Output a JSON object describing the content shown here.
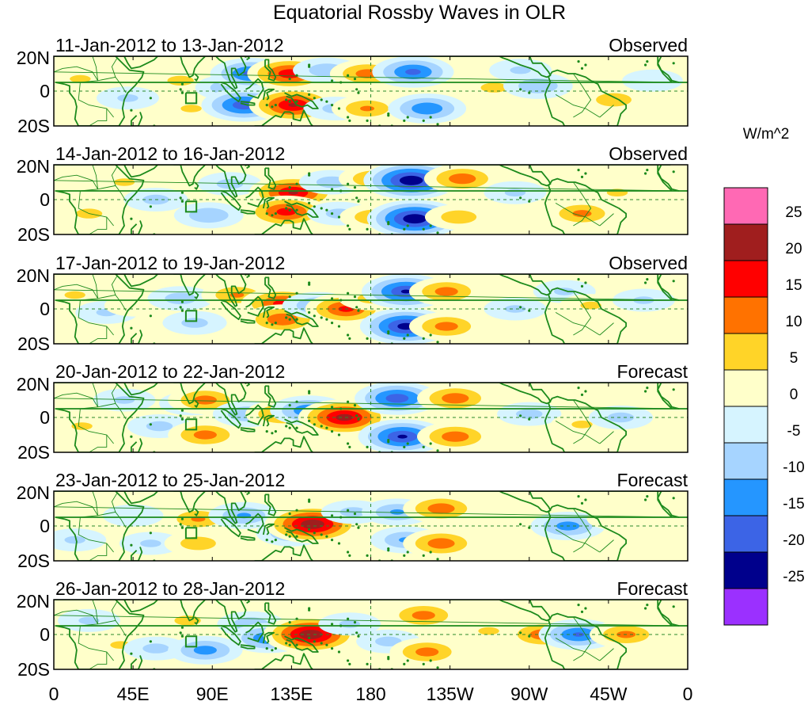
{
  "title": "Equatorial Rossby Waves in OLR",
  "units": "W/m^2",
  "colors": {
    "coast": "#1c8a1c",
    "dash": "#2a8a2a",
    "frame": "#000000"
  },
  "lat_labels": [
    "20N",
    "0",
    "20S"
  ],
  "lon_labels": [
    "0",
    "45E",
    "90E",
    "135E",
    "180",
    "135W",
    "90W",
    "45W",
    "0"
  ],
  "colorbar": {
    "levels": [
      "25",
      "20",
      "15",
      "10",
      "5",
      "0",
      "-5",
      "-10",
      "-15",
      "-20",
      "-25"
    ],
    "colors": [
      "#ff69b4",
      "#a01e1e",
      "#ff0000",
      "#ff7200",
      "#ffd428",
      "#ffffca",
      "#d6f4ff",
      "#a6d4ff",
      "#2596ff",
      "#3c64e6",
      "#00008c",
      "#9b30ff"
    ]
  },
  "panels": [
    {
      "dates": "11-Jan-2012 to 13-Jan-2012",
      "kind": "Observed",
      "blobs": [
        {
          "lon": 15,
          "lat": 7,
          "v": 5
        },
        {
          "lon": 42,
          "lat": -4,
          "v": -5
        },
        {
          "lon": 72,
          "lat": 6,
          "v": 6
        },
        {
          "lon": 78,
          "lat": -10,
          "v": 5
        },
        {
          "lon": 100,
          "lat": 2,
          "v": -9
        },
        {
          "lon": 112,
          "lat": 10,
          "v": -16
        },
        {
          "lon": 108,
          "lat": -8,
          "v": -18
        },
        {
          "lon": 134,
          "lat": 10,
          "v": 18
        },
        {
          "lon": 136,
          "lat": -8,
          "v": 20
        },
        {
          "lon": 155,
          "lat": 12,
          "v": -8
        },
        {
          "lon": 160,
          "lat": -10,
          "v": -6
        },
        {
          "lon": 178,
          "lat": 10,
          "v": 12
        },
        {
          "lon": 178,
          "lat": -10,
          "v": 10
        },
        {
          "lon": 204,
          "lat": 11,
          "v": -16
        },
        {
          "lon": 212,
          "lat": -10,
          "v": -14
        },
        {
          "lon": 250,
          "lat": 2,
          "v": 6
        },
        {
          "lon": 265,
          "lat": 12,
          "v": -5
        },
        {
          "lon": 275,
          "lat": 3,
          "v": -9
        },
        {
          "lon": 318,
          "lat": -5,
          "v": 8
        },
        {
          "lon": 340,
          "lat": 6,
          "v": -4
        }
      ]
    },
    {
      "dates": "14-Jan-2012 to 16-Jan-2012",
      "kind": "Observed",
      "blobs": [
        {
          "lon": 20,
          "lat": -8,
          "v": 6
        },
        {
          "lon": 40,
          "lat": 10,
          "v": 5
        },
        {
          "lon": 58,
          "lat": 0,
          "v": -6
        },
        {
          "lon": 88,
          "lat": -9,
          "v": -9
        },
        {
          "lon": 100,
          "lat": 9,
          "v": -6
        },
        {
          "lon": 136,
          "lat": 4,
          "v": 20
        },
        {
          "lon": 132,
          "lat": -7,
          "v": 17
        },
        {
          "lon": 158,
          "lat": 10,
          "v": -7
        },
        {
          "lon": 162,
          "lat": -8,
          "v": -6
        },
        {
          "lon": 182,
          "lat": 12,
          "v": 10
        },
        {
          "lon": 182,
          "lat": -10,
          "v": 9
        },
        {
          "lon": 203,
          "lat": 11,
          "v": -24
        },
        {
          "lon": 205,
          "lat": -11,
          "v": -24
        },
        {
          "lon": 232,
          "lat": 12,
          "v": 13
        },
        {
          "lon": 230,
          "lat": -10,
          "v": 8
        },
        {
          "lon": 262,
          "lat": 4,
          "v": -5
        },
        {
          "lon": 300,
          "lat": -8,
          "v": 11
        },
        {
          "lon": 320,
          "lat": 4,
          "v": 5
        }
      ]
    },
    {
      "dates": "17-Jan-2012 to 19-Jan-2012",
      "kind": "Observed",
      "blobs": [
        {
          "lon": 12,
          "lat": 8,
          "v": 5
        },
        {
          "lon": 30,
          "lat": -2,
          "v": -5
        },
        {
          "lon": 46,
          "lat": 2,
          "v": 4
        },
        {
          "lon": 72,
          "lat": 6,
          "v": -7
        },
        {
          "lon": 80,
          "lat": -8,
          "v": -6
        },
        {
          "lon": 104,
          "lat": 8,
          "v": 10
        },
        {
          "lon": 130,
          "lat": 3,
          "v": 17
        },
        {
          "lon": 130,
          "lat": -6,
          "v": 14
        },
        {
          "lon": 150,
          "lat": 2,
          "v": -10
        },
        {
          "lon": 166,
          "lat": 0,
          "v": 16
        },
        {
          "lon": 180,
          "lat": 6,
          "v": 6
        },
        {
          "lon": 200,
          "lat": 10,
          "v": -20
        },
        {
          "lon": 200,
          "lat": -10,
          "v": -22
        },
        {
          "lon": 223,
          "lat": 10,
          "v": 12
        },
        {
          "lon": 223,
          "lat": -10,
          "v": 12
        },
        {
          "lon": 262,
          "lat": 0,
          "v": -5
        },
        {
          "lon": 290,
          "lat": 10,
          "v": -5
        },
        {
          "lon": 305,
          "lat": 2,
          "v": 5
        },
        {
          "lon": 335,
          "lat": 5,
          "v": -5
        }
      ]
    },
    {
      "dates": "20-Jan-2012 to 22-Jan-2012",
      "kind": "Forecast",
      "blobs": [
        {
          "lon": 16,
          "lat": -5,
          "v": 5
        },
        {
          "lon": 40,
          "lat": 10,
          "v": -5
        },
        {
          "lon": 60,
          "lat": -5,
          "v": -6
        },
        {
          "lon": 78,
          "lat": 8,
          "v": -6
        },
        {
          "lon": 86,
          "lat": 10,
          "v": 12
        },
        {
          "lon": 86,
          "lat": -10,
          "v": 12
        },
        {
          "lon": 110,
          "lat": 2,
          "v": -9
        },
        {
          "lon": 130,
          "lat": 2,
          "v": 12
        },
        {
          "lon": 145,
          "lat": 4,
          "v": -14
        },
        {
          "lon": 165,
          "lat": 0,
          "v": 22
        },
        {
          "lon": 195,
          "lat": 11,
          "v": -18
        },
        {
          "lon": 198,
          "lat": -11,
          "v": -20
        },
        {
          "lon": 228,
          "lat": 11,
          "v": 13
        },
        {
          "lon": 228,
          "lat": -11,
          "v": 13
        },
        {
          "lon": 270,
          "lat": 2,
          "v": -6
        },
        {
          "lon": 300,
          "lat": -4,
          "v": 5
        },
        {
          "lon": 322,
          "lat": 0,
          "v": -6
        }
      ]
    },
    {
      "dates": "23-Jan-2012 to 25-Jan-2012",
      "kind": "Forecast",
      "blobs": [
        {
          "lon": 12,
          "lat": -8,
          "v": -5
        },
        {
          "lon": 45,
          "lat": 6,
          "v": -4
        },
        {
          "lon": 55,
          "lat": -10,
          "v": -5
        },
        {
          "lon": 82,
          "lat": 4,
          "v": 10
        },
        {
          "lon": 82,
          "lat": -10,
          "v": 8
        },
        {
          "lon": 108,
          "lat": 6,
          "v": -10
        },
        {
          "lon": 135,
          "lat": -4,
          "v": -10
        },
        {
          "lon": 147,
          "lat": 1,
          "v": 24
        },
        {
          "lon": 170,
          "lat": 8,
          "v": -6
        },
        {
          "lon": 195,
          "lat": 8,
          "v": -10
        },
        {
          "lon": 200,
          "lat": -8,
          "v": -10
        },
        {
          "lon": 220,
          "lat": 10,
          "v": 13
        },
        {
          "lon": 220,
          "lat": -10,
          "v": 13
        },
        {
          "lon": 255,
          "lat": 4,
          "v": 4
        },
        {
          "lon": 292,
          "lat": 0,
          "v": -12
        },
        {
          "lon": 320,
          "lat": 4,
          "v": 4
        }
      ]
    },
    {
      "dates": "26-Jan-2012 to 28-Jan-2012",
      "kind": "Forecast",
      "blobs": [
        {
          "lon": 20,
          "lat": 8,
          "v": -5
        },
        {
          "lon": 38,
          "lat": -6,
          "v": 5
        },
        {
          "lon": 58,
          "lat": -8,
          "v": -6
        },
        {
          "lon": 76,
          "lat": 8,
          "v": 6
        },
        {
          "lon": 86,
          "lat": -9,
          "v": -12
        },
        {
          "lon": 112,
          "lat": 6,
          "v": -8
        },
        {
          "lon": 122,
          "lat": -2,
          "v": -14
        },
        {
          "lon": 146,
          "lat": 0,
          "v": 24
        },
        {
          "lon": 168,
          "lat": 6,
          "v": -5
        },
        {
          "lon": 190,
          "lat": -4,
          "v": -6
        },
        {
          "lon": 210,
          "lat": 11,
          "v": 12
        },
        {
          "lon": 212,
          "lat": -10,
          "v": 12
        },
        {
          "lon": 247,
          "lat": 2,
          "v": 5
        },
        {
          "lon": 278,
          "lat": 0,
          "v": 13
        },
        {
          "lon": 298,
          "lat": 0,
          "v": -15
        },
        {
          "lon": 325,
          "lat": 0,
          "v": 11
        }
      ]
    }
  ]
}
